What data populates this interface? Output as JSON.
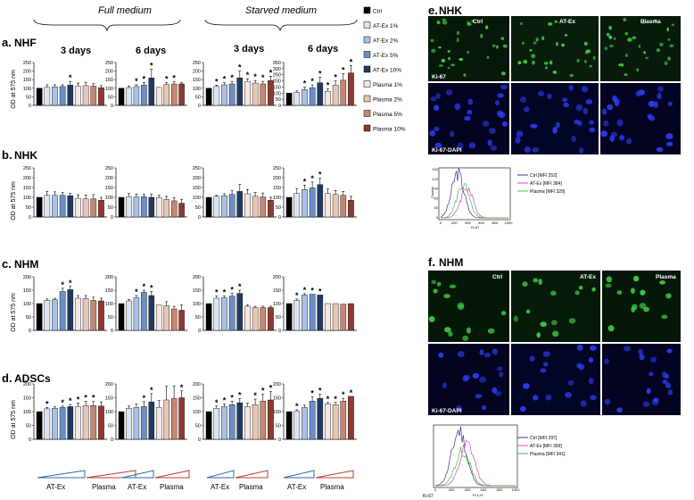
{
  "headers": {
    "full": "Full medium",
    "starved": "Starved medium"
  },
  "panel_labels": {
    "a": "a.",
    "b": "b.",
    "c": "c.",
    "d": "d.",
    "e": "e.",
    "f": "f."
  },
  "row_titles": {
    "a": "NHF",
    "b": "NHK",
    "c": "NHM",
    "d": "ADSCs"
  },
  "day_labels": {
    "d3": "3 days",
    "d6": "6  days"
  },
  "ylabel": "OD at 575 nm",
  "group_labels": {
    "atex": "AT-Ex",
    "plasma": "Plasma"
  },
  "legend": [
    {
      "label": "Ctrl",
      "color": "#000000"
    },
    {
      "label": "AT-Ex 1%",
      "color": "#dae4f2"
    },
    {
      "label": "AT-Ex 2%",
      "color": "#a9c1e3"
    },
    {
      "label": "AT-Ex 5%",
      "color": "#6a8fc8"
    },
    {
      "label": "AT-Ex 10%",
      "color": "#1f3a63"
    },
    {
      "label": "Plasma 1%",
      "color": "#f4e8e1"
    },
    {
      "label": "Plasma 2%",
      "color": "#e8c6b5"
    },
    {
      "label": "Plasma 5%",
      "color": "#c88671"
    },
    {
      "label": "Plasma 10%",
      "color": "#8e3a2e"
    }
  ],
  "micro_e": {
    "title": "NHK",
    "labels": [
      "Ctrl",
      "AT-Ex",
      "Plasma"
    ],
    "row1_label": "Ki-67",
    "row2_label": "Ki-67-DAPI",
    "hist_xlabel": "Ki-67",
    "hist_ylabel": "Counts",
    "hist_xticks": [
      "0",
      "200",
      "400",
      "600",
      "800",
      "1000"
    ],
    "hist_yticks": [
      "0",
      "30",
      "60",
      "90",
      "120",
      "150"
    ],
    "legend": [
      {
        "label": "Ctrl [MFI 252]",
        "color": "#4b2c8f",
        "mfi": 252
      },
      {
        "label": "AT-Ex [MFI 384]",
        "color": "#e040c0",
        "mfi": 384
      },
      {
        "label": "Plasma [MFI 329]",
        "color": "#40c040",
        "mfi": 329
      }
    ]
  },
  "micro_f": {
    "title": "NHM",
    "labels": [
      "Ctrl",
      "AT-Ex",
      "Plasma"
    ],
    "row2_label": "Ki-67-DAPI",
    "hist_xlabel": "Ki-67",
    "hist_axis_label": "FL1-H",
    "hist_xticks": [
      "0",
      "200",
      "400",
      "600",
      "800",
      "1000"
    ],
    "legend": [
      {
        "label": "Ctrl [MFI 297]",
        "color": "#4b2c8f",
        "mfi": 297
      },
      {
        "label": "AT-Ex [MFI 399]",
        "color": "#e040c0",
        "mfi": 399
      },
      {
        "label": "Plasma [MFI 341]",
        "color": "#40c040",
        "mfi": 341
      }
    ]
  },
  "chart_data": [
    {
      "row": "a",
      "medium": "Full medium",
      "day": "3 days",
      "type": "bar",
      "ylim": [
        0,
        250
      ],
      "yticks": [
        "0",
        "50",
        "100",
        "150",
        "200",
        "250"
      ],
      "values": [
        100,
        105,
        108,
        110,
        118,
        112,
        115,
        112,
        103
      ],
      "errors": [
        0,
        15,
        12,
        10,
        22,
        18,
        20,
        15,
        12
      ],
      "stars": [
        0,
        0,
        0,
        0,
        1,
        0,
        0,
        0,
        0
      ]
    },
    {
      "row": "a",
      "medium": "Full medium",
      "day": "6 days",
      "type": "bar",
      "ylim": [
        0,
        250
      ],
      "yticks": [
        "0",
        "50",
        "100",
        "150",
        "200",
        "250"
      ],
      "values": [
        100,
        104,
        110,
        118,
        160,
        105,
        122,
        125,
        125
      ],
      "errors": [
        0,
        8,
        10,
        15,
        50,
        0,
        10,
        12,
        8
      ],
      "stars": [
        0,
        0,
        1,
        1,
        1,
        0,
        1,
        1,
        0
      ]
    },
    {
      "row": "a",
      "medium": "Starved medium",
      "day": "3 days",
      "type": "bar",
      "ylim": [
        0,
        250
      ],
      "yticks": [
        "0",
        "50",
        "100",
        "150",
        "200",
        "250"
      ],
      "values": [
        100,
        110,
        120,
        125,
        160,
        140,
        130,
        125,
        145
      ],
      "errors": [
        0,
        8,
        12,
        15,
        40,
        15,
        15,
        15,
        25
      ],
      "stars": [
        0,
        1,
        1,
        1,
        1,
        1,
        1,
        1,
        1
      ]
    },
    {
      "row": "a",
      "medium": "Starved medium",
      "day": "6 days",
      "type": "bar",
      "ylim": [
        0,
        350
      ],
      "yticks": [
        "0",
        "50",
        "100",
        "150",
        "200",
        "250",
        "300",
        "350"
      ],
      "values": [
        100,
        108,
        130,
        145,
        185,
        115,
        165,
        205,
        265
      ],
      "errors": [
        0,
        10,
        18,
        22,
        45,
        20,
        35,
        55,
        60
      ],
      "stars": [
        0,
        0,
        1,
        1,
        1,
        1,
        1,
        1,
        1
      ]
    },
    {
      "row": "b",
      "medium": "Full medium",
      "day": "3 days",
      "type": "bar",
      "ylim": [
        0,
        250
      ],
      "yticks": [
        "0",
        "50",
        "100",
        "150",
        "200",
        "250"
      ],
      "values": [
        100,
        110,
        110,
        110,
        108,
        95,
        92,
        92,
        85
      ],
      "errors": [
        0,
        20,
        18,
        15,
        12,
        18,
        20,
        22,
        15
      ],
      "stars": [
        0,
        0,
        0,
        0,
        0,
        0,
        0,
        0,
        0
      ]
    },
    {
      "row": "b",
      "medium": "Full medium",
      "day": "6 days",
      "type": "bar",
      "ylim": [
        0,
        250
      ],
      "yticks": [
        "0",
        "50",
        "100",
        "150",
        "200",
        "250"
      ],
      "values": [
        100,
        104,
        102,
        103,
        100,
        98,
        90,
        82,
        70
      ],
      "errors": [
        0,
        15,
        15,
        12,
        15,
        12,
        15,
        15,
        20
      ],
      "stars": [
        0,
        0,
        0,
        0,
        0,
        0,
        0,
        0,
        0
      ]
    },
    {
      "row": "b",
      "medium": "Starved medium",
      "day": "3 days",
      "type": "bar",
      "ylim": [
        0,
        250
      ],
      "yticks": [
        "0",
        "50",
        "100",
        "150",
        "200",
        "250"
      ],
      "values": [
        100,
        105,
        108,
        115,
        130,
        118,
        105,
        102,
        85
      ],
      "errors": [
        0,
        5,
        10,
        18,
        35,
        22,
        20,
        20,
        15
      ],
      "stars": [
        0,
        0,
        0,
        0,
        0,
        0,
        0,
        0,
        0
      ]
    },
    {
      "row": "b",
      "medium": "Starved medium",
      "day": "6 days",
      "type": "bar",
      "ylim": [
        0,
        250
      ],
      "yticks": [
        "0",
        "50",
        "100",
        "150",
        "200",
        "250"
      ],
      "values": [
        100,
        120,
        140,
        148,
        165,
        120,
        115,
        110,
        85
      ],
      "errors": [
        0,
        25,
        22,
        30,
        32,
        22,
        20,
        20,
        20
      ],
      "stars": [
        0,
        0,
        1,
        1,
        1,
        0,
        0,
        0,
        0
      ]
    },
    {
      "row": "c",
      "medium": "Full medium",
      "day": "3 days",
      "type": "bar",
      "ylim": [
        0,
        200
      ],
      "yticks": [
        "0",
        "50",
        "100",
        "150",
        "200"
      ],
      "values": [
        100,
        112,
        115,
        145,
        152,
        120,
        118,
        112,
        110
      ],
      "errors": [
        0,
        5,
        5,
        12,
        12,
        10,
        12,
        12,
        10
      ],
      "stars": [
        0,
        0,
        0,
        1,
        1,
        0,
        0,
        0,
        0
      ]
    },
    {
      "row": "c",
      "medium": "Full medium",
      "day": "6 days",
      "type": "bar",
      "ylim": [
        0,
        200
      ],
      "yticks": [
        "0",
        "50",
        "100",
        "150",
        "200"
      ],
      "values": [
        100,
        110,
        122,
        142,
        130,
        95,
        92,
        80,
        75
      ],
      "errors": [
        0,
        5,
        8,
        8,
        15,
        0,
        15,
        10,
        20
      ],
      "stars": [
        0,
        0,
        1,
        1,
        1,
        0,
        0,
        0,
        0
      ]
    },
    {
      "row": "c",
      "medium": "Starved medium",
      "day": "3 days",
      "type": "bar",
      "ylim": [
        0,
        200
      ],
      "yticks": [
        "0",
        "50",
        "100",
        "150",
        "200"
      ],
      "values": [
        100,
        120,
        122,
        128,
        138,
        90,
        85,
        85,
        85
      ],
      "errors": [
        0,
        8,
        6,
        10,
        12,
        5,
        5,
        5,
        5
      ],
      "stars": [
        0,
        1,
        1,
        1,
        1,
        0,
        0,
        0,
        0
      ]
    },
    {
      "row": "c",
      "medium": "Starved medium",
      "day": "6 days",
      "type": "bar",
      "ylim": [
        0,
        200
      ],
      "yticks": [
        "0",
        "50",
        "100",
        "150",
        "200"
      ],
      "values": [
        100,
        112,
        132,
        135,
        132,
        100,
        100,
        98,
        100
      ],
      "errors": [
        0,
        5,
        5,
        0,
        0,
        0,
        0,
        0,
        0
      ],
      "stars": [
        0,
        1,
        1,
        1,
        1,
        0,
        0,
        0,
        0
      ]
    },
    {
      "row": "d",
      "medium": "Full medium",
      "day": "3 days",
      "type": "bar",
      "ylim": [
        0,
        200
      ],
      "yticks": [
        "0",
        "50",
        "100",
        "150",
        "200"
      ],
      "values": [
        100,
        110,
        112,
        115,
        118,
        118,
        122,
        122,
        120
      ],
      "errors": [
        0,
        5,
        5,
        5,
        8,
        12,
        15,
        15,
        15
      ],
      "stars": [
        0,
        1,
        0,
        1,
        1,
        1,
        1,
        1,
        0
      ]
    },
    {
      "row": "d",
      "medium": "Full medium",
      "day": "6 days",
      "type": "bar",
      "ylim": [
        0,
        200
      ],
      "yticks": [
        "0",
        "50",
        "100",
        "150",
        "200"
      ],
      "values": [
        100,
        112,
        115,
        118,
        135,
        115,
        142,
        148,
        150
      ],
      "errors": [
        0,
        8,
        12,
        18,
        30,
        25,
        50,
        45,
        25
      ],
      "stars": [
        0,
        0,
        0,
        1,
        1,
        0,
        0,
        0,
        1
      ]
    },
    {
      "row": "d",
      "medium": "Starved medium",
      "day": "3 days",
      "type": "bar",
      "ylim": [
        0,
        200
      ],
      "yticks": [
        "0",
        "50",
        "100",
        "150",
        "200"
      ],
      "values": [
        100,
        112,
        118,
        125,
        132,
        118,
        125,
        138,
        142
      ],
      "errors": [
        0,
        8,
        10,
        12,
        15,
        12,
        20,
        25,
        30
      ],
      "stars": [
        0,
        1,
        1,
        1,
        1,
        0,
        1,
        1,
        1
      ]
    },
    {
      "row": "d",
      "medium": "Starved medium",
      "day": "6 days",
      "type": "bar",
      "ylim": [
        0,
        200
      ],
      "yticks": [
        "0",
        "50",
        "100",
        "150",
        "200"
      ],
      "values": [
        100,
        102,
        115,
        138,
        148,
        128,
        125,
        138,
        155
      ],
      "errors": [
        0,
        5,
        8,
        15,
        15,
        5,
        8,
        10,
        0
      ],
      "stars": [
        0,
        1,
        0,
        1,
        1,
        1,
        1,
        1,
        1
      ]
    }
  ]
}
